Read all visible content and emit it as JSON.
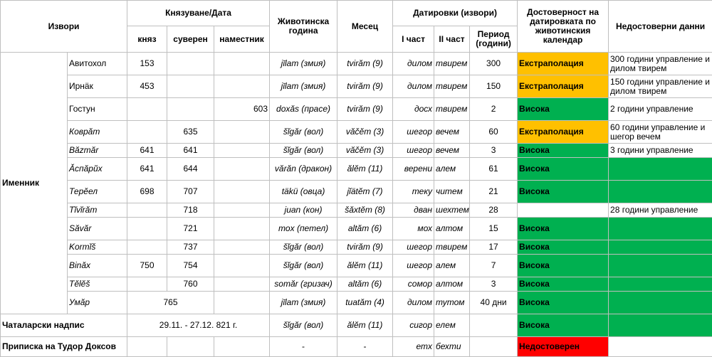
{
  "headers": {
    "sources": "Извори",
    "reign_date": "Князуване/Дата",
    "knyaz": "княз",
    "suveren": "суверен",
    "namestnik": "наместник",
    "animal_year": "Животинска година",
    "month": "Месец",
    "datings": "Датировки (извори)",
    "part1": "I част",
    "part2": "II част",
    "period": "Период (години)",
    "reliability": "Достоверност на датировката по животинския календар",
    "unreliable": "Недостоверни данни"
  },
  "group_label": "Именник",
  "colors": {
    "extrapolation": "#ffc000",
    "high": "#00b050",
    "unreliable": "#ff0000"
  },
  "rows": [
    {
      "name": "Авитохол",
      "knyaz": "153",
      "suveren": "",
      "namestnik": "",
      "animal": "jīlam (змия)",
      "month": "tvirăm (9)",
      "p1": "дилом",
      "p2": "твирем",
      "period": "300",
      "rel": "Екстраполация",
      "level": "low",
      "note": "300 години управление и дилом твирем"
    },
    {
      "name": "Ирнäк",
      "knyaz": "453",
      "suveren": "",
      "namestnik": "",
      "animal": "jīlam (змия)",
      "month": "tvirăm (9)",
      "p1": "дилом",
      "p2": "твирем",
      "period": "150",
      "rel": "Екстраполация",
      "level": "low",
      "note": "150 години управление и дилом твирем"
    },
    {
      "name": "Гостун",
      "knyaz": "",
      "suveren": "",
      "namestnik": "603",
      "animal": "doxăs (прасе)",
      "month": "tvirăm (9)",
      "p1": "досх",
      "p2": "твирем",
      "period": "2",
      "rel": "Висока",
      "level": "high",
      "note": "2 години управление"
    },
    {
      "name": "Коврăт",
      "knyaz": "",
      "suveren": "635",
      "namestnik": "",
      "animal": "šĭgăr (вол)",
      "month": "văčĕm (3)",
      "p1": "шегор",
      "p2": "вечем",
      "period": "60",
      "rel": "Екстраполация",
      "level": "low",
      "note": "60 години управление и шегор вечем"
    },
    {
      "name": "Băzmăr",
      "knyaz": "641",
      "suveren": "641",
      "namestnik": "",
      "animal": "šĭgăr (вол)",
      "month": "văčĕm (3)",
      "p1": "шегор",
      "p2": "вечем",
      "period": "3",
      "rel": "Висока",
      "level": "high",
      "note": "3 години управление"
    },
    {
      "name": "Ăспăрŭх",
      "knyaz": "641",
      "suveren": "644",
      "namestnik": "",
      "animal": "vărăn (дракон)",
      "month": "ălĕm (11)",
      "p1": "верени",
      "p2": "алем",
      "period": "61",
      "rel": "Висока",
      "level": "high",
      "note": ""
    },
    {
      "name": "Терĕел",
      "knyaz": "698",
      "suveren": "707",
      "namestnik": "",
      "animal": "täkü (овца)",
      "month": "jĭätĕm (7)",
      "p1": "теку",
      "p2": "читем",
      "period": "21",
      "rel": "Висока",
      "level": "high",
      "note": ""
    },
    {
      "name": "Tĭvĭrăm",
      "knyaz": "",
      "suveren": "718",
      "namestnik": "",
      "animal": "juan (кон)",
      "month": "šăxtĕm (8)",
      "p1": "дван",
      "p2": "шехтем",
      "period": "28",
      "rel": "",
      "level": "blank",
      "note": "28 години управление"
    },
    {
      "name": "Săvăr",
      "knyaz": "",
      "suveren": "721",
      "namestnik": "",
      "animal": "mox (петел)",
      "month": "altăm (6)",
      "p1": "мох",
      "p2": "алтом",
      "period": "15",
      "rel": "Висока",
      "level": "high",
      "note": ""
    },
    {
      "name": "Kormĭš",
      "knyaz": "",
      "suveren": "737",
      "namestnik": "",
      "animal": "šĭgăr (вол)",
      "month": "tvirăm (9)",
      "p1": "шегор",
      "p2": "твирем",
      "period": "17",
      "rel": "Висока",
      "level": "high",
      "note": ""
    },
    {
      "name": "Binăx",
      "knyaz": "750",
      "suveren": "754",
      "namestnik": "",
      "animal": "šĭgăr (вол)",
      "month": "ălĕm (11)",
      "p1": "шегор",
      "p2": "алем",
      "period": "7",
      "rel": "Висока",
      "level": "high",
      "note": ""
    },
    {
      "name": "Tĕlĕš",
      "knyaz": "",
      "suveren": "760",
      "namestnik": "",
      "animal": "somăr (гризач)",
      "month": "altăm (6)",
      "p1": "сомор",
      "p2": "алтом",
      "period": "3",
      "rel": "Висока",
      "level": "high",
      "note": ""
    },
    {
      "name": "Умăр",
      "knyaz": "765",
      "suveren": "",
      "namestnik": "",
      "animal": "jīlam (змия)",
      "month": "tuatăm (4)",
      "p1": "дилом",
      "p2": "тутом",
      "period": "40 дни",
      "rel": "Висока",
      "level": "high",
      "note": ""
    }
  ],
  "chatalar": {
    "label": "Чаталарски надпис",
    "date": "29.11. - 27.12.  821 г.",
    "animal": "šĭgăr (вол)",
    "month": "ălĕm (11)",
    "p1": "сигор",
    "p2": "елем",
    "period": "",
    "rel": "Висока",
    "note": ""
  },
  "tudor": {
    "label": "Приписка на Тудор Доксов",
    "animal": "-",
    "month": "-",
    "p1": "етх",
    "p2": "бехти",
    "period": "",
    "rel": "Недостоверен",
    "note": ""
  }
}
